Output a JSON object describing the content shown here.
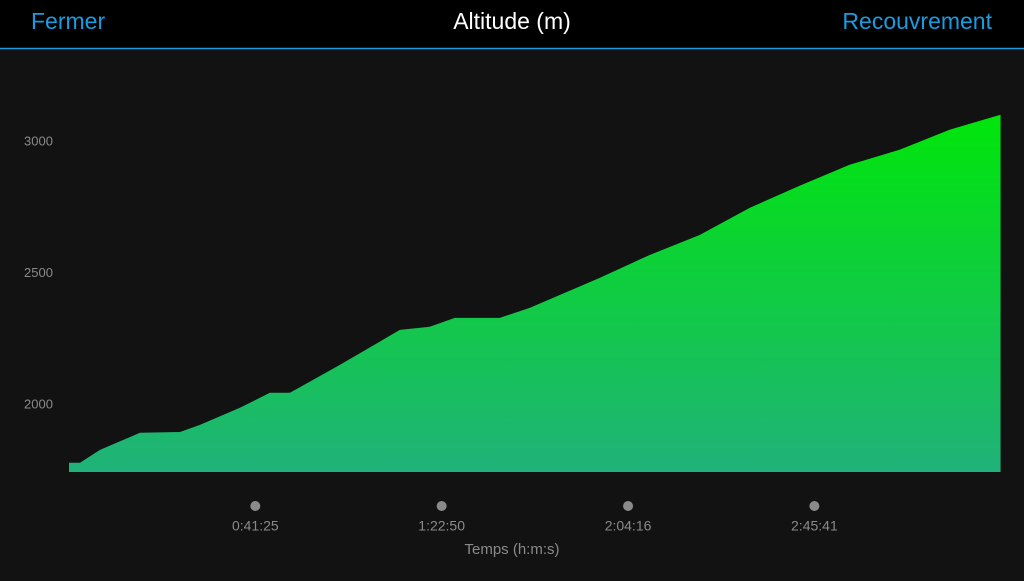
{
  "header": {
    "left": "Fermer",
    "title": "Altitude (m)",
    "right": "Recouvrement"
  },
  "chart_data": {
    "type": "area",
    "x_label": "Temps (h:m:s)",
    "x": [
      0,
      147,
      413,
      946,
      1480,
      1746,
      2279,
      2679,
      2946,
      3612,
      4412,
      4811,
      5145,
      5745,
      6144,
      7078,
      7744,
      8411,
      9078,
      9744,
      10411,
      11077,
      11744,
      12424
    ],
    "series": [
      {
        "color": "#00e60a",
        "values": [
          1780,
          1780,
          1829,
          1894,
          1897,
          1924,
          1989,
          2046,
          2046,
          2152,
          2285,
          2297,
          2331,
          2331,
          2369,
          2483,
          2570,
          2646,
          2749,
          2833,
          2913,
          2970,
          3046,
          3103
        ]
      }
    ],
    "xlim": [
      0,
      12430
    ],
    "ylim": [
      1745,
      3330
    ],
    "xticks": [
      {
        "value": 2485,
        "label": "0:41:25"
      },
      {
        "value": 4970,
        "label": "1:22:50"
      },
      {
        "value": 7456,
        "label": "2:04:16"
      },
      {
        "value": 9941,
        "label": "2:45:41"
      }
    ],
    "yticks": [
      2000,
      2500,
      3000
    ],
    "grid": false
  }
}
